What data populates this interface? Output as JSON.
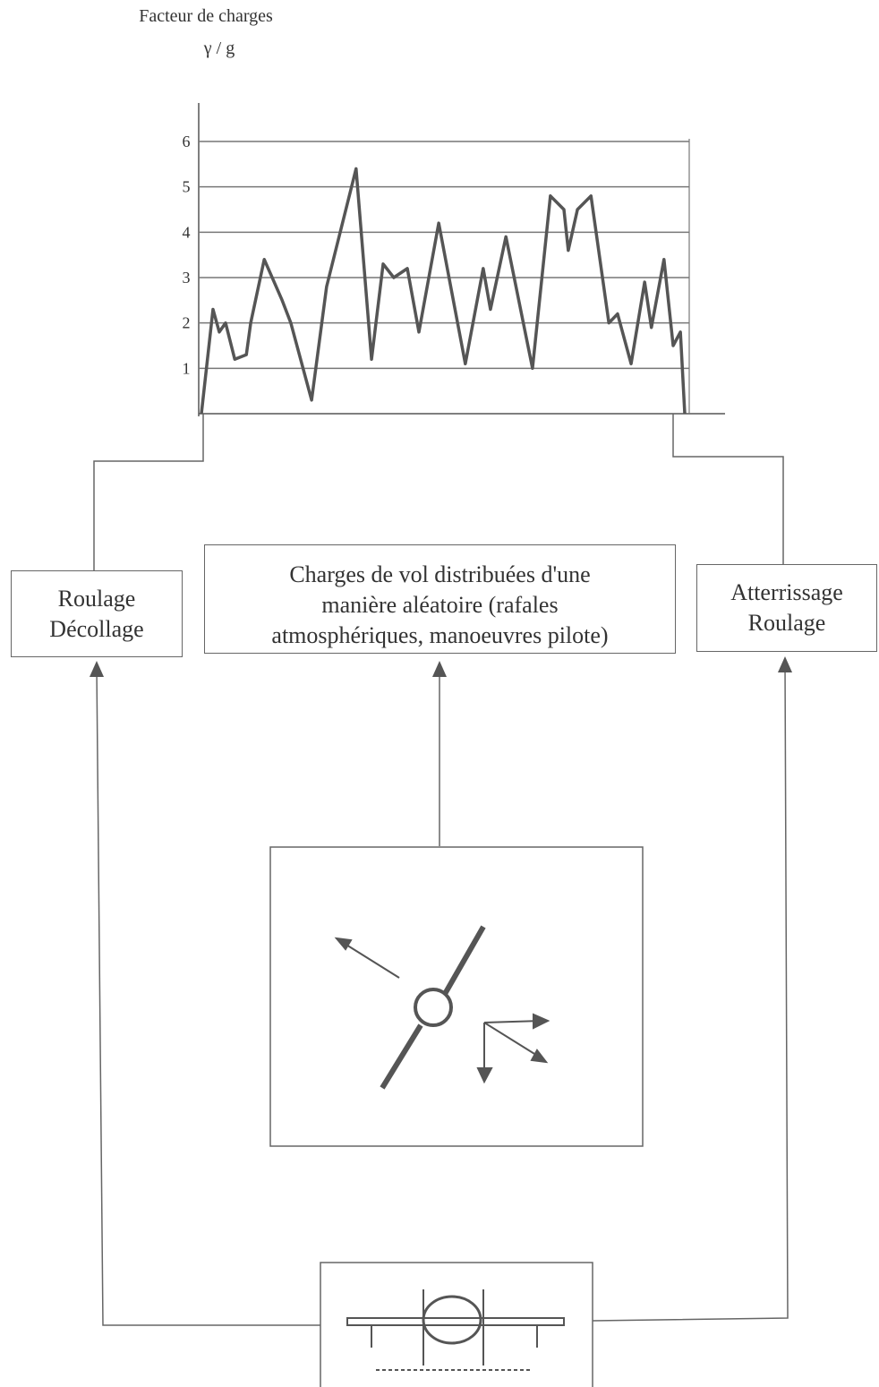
{
  "chart_data": {
    "type": "line",
    "ylabel": "Facteur de charges",
    "yunit": "γ / g",
    "x": [
      0,
      2.4,
      3.7,
      5,
      6.9,
      9.3,
      10.2,
      13,
      16.7,
      18.5,
      22.8,
      25.9,
      32,
      35.2,
      37.6,
      39.8,
      42.6,
      45,
      49.1,
      54.6,
      58.3,
      59.8,
      63,
      68.5,
      72.2,
      75,
      75.9,
      77.8,
      80.6,
      84.3,
      86.1,
      88.9,
      91.7,
      93.1,
      95.7,
      97.6,
      99.1,
      100
    ],
    "values": [
      0,
      2.3,
      1.8,
      2.0,
      1.2,
      1.3,
      2.0,
      3.4,
      2.5,
      2.0,
      0.3,
      2.8,
      5.4,
      1.2,
      3.3,
      3.0,
      3.2,
      1.8,
      4.2,
      1.1,
      3.2,
      2.3,
      3.9,
      1.0,
      4.8,
      4.5,
      3.6,
      4.5,
      4.8,
      2.0,
      2.2,
      1.1,
      2.9,
      1.9,
      3.4,
      1.5,
      1.8,
      0
    ],
    "color": "#555555",
    "xlim": [
      0,
      100
    ],
    "ylim": [
      0,
      6
    ],
    "yticks": [
      1,
      2,
      3,
      4,
      5,
      6
    ],
    "grid": true
  },
  "nodes": [
    {
      "label": [
        "Roulage",
        "Décollage"
      ]
    },
    {
      "label": [
        "Charges de vol distribuées d'une",
        "manière aléatoire (rafales",
        "atmosphériques, manoeuvres pilote)"
      ]
    },
    {
      "label": [
        "Atterrissage",
        "Roulage"
      ]
    }
  ]
}
